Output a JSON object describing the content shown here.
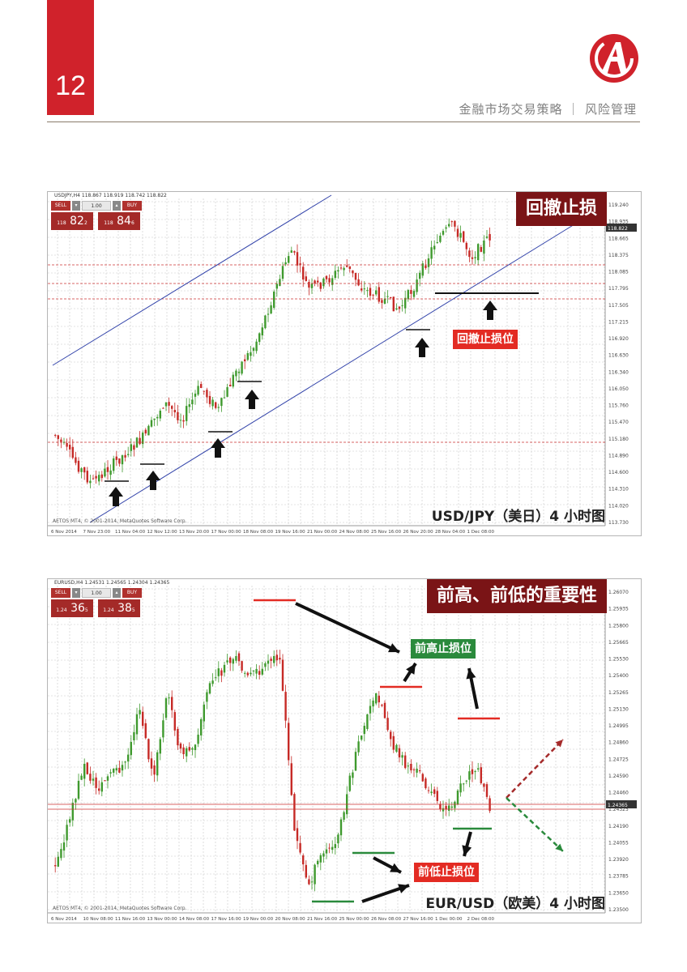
{
  "header": {
    "page_number": "12",
    "title": "金融市场交易策略 ｜ 风险管理",
    "brand_color": "#d0222b"
  },
  "chart1": {
    "symbol_line": "USDJPY,H4 118.867 118.919 118.742 118.822",
    "copyright": "AETOS MT4, © 2001-2014, MetaQuotes Software Corp.",
    "banner": "回撤止损",
    "caption": "USD/JPY（美日）4 小时图",
    "stop_label": "回撤止损位",
    "ticket": {
      "sell": "SELL",
      "buy": "BUY",
      "lot": "1.00",
      "sell_price_small": "118",
      "sell_price_big": "82",
      "sell_price_sup": "2",
      "buy_price_small": "118",
      "buy_price_big": "84",
      "buy_price_sup": "6"
    }
  },
  "chart2": {
    "symbol_line": "EURUSD,H4 1.24531 1.24565 1.24304 1.24365",
    "copyright": "AETOS MT4, © 2001-2014, MetaQuotes Software Corp.",
    "banner": "前高、前低的重要性",
    "caption": "EUR/USD（欧美）4 小时图",
    "high_label": "前高止损位",
    "low_label": "前低止损位",
    "ticket": {
      "sell": "SELL",
      "buy": "BUY",
      "lot": "1.00",
      "sell_price_small": "1.24",
      "sell_price_big": "36",
      "sell_price_sup": "5",
      "buy_price_small": "1.24",
      "buy_price_big": "38",
      "buy_price_sup": "5"
    }
  },
  "chart_data": [
    {
      "type": "candlestick",
      "title": "USD/JPY（美日）4 小时图",
      "y_ticks": [
        "119.240",
        "118.935",
        "118.665",
        "118.375",
        "118.085",
        "117.795",
        "117.505",
        "117.215",
        "116.920",
        "116.630",
        "116.340",
        "116.050",
        "115.760",
        "115.470",
        "115.180",
        "114.890",
        "114.600",
        "114.310",
        "114.020",
        "113.730"
      ],
      "current_price": "118.822",
      "x_ticks": [
        "6 Nov 2014",
        "7 Nov 23:00",
        "11 Nov 04:00",
        "12 Nov 12:00",
        "13 Nov 20:00",
        "17 Nov 00:00",
        "18 Nov 08:00",
        "19 Nov 16:00",
        "21 Nov 00:00",
        "24 Nov 08:00",
        "25 Nov 16:00",
        "26 Nov 20:00",
        "28 Nov 04:00",
        "1 Dec 08:00"
      ]
    },
    {
      "type": "candlestick",
      "title": "EUR/USD（欧美）4 小时图",
      "y_ticks": [
        "1.26070",
        "1.25935",
        "1.25800",
        "1.25665",
        "1.25530",
        "1.25400",
        "1.25265",
        "1.25130",
        "1.24995",
        "1.24860",
        "1.24725",
        "1.24590",
        "1.24460",
        "1.24325",
        "1.24190",
        "1.24055",
        "1.23920",
        "1.23785",
        "1.23650",
        "1.23500"
      ],
      "current_price": "1.24365",
      "x_ticks": [
        "6 Nov 2014",
        "10 Nov 08:00",
        "11 Nov 16:00",
        "13 Nov 00:00",
        "14 Nov 08:00",
        "17 Nov 16:00",
        "19 Nov 00:00",
        "20 Nov 08:00",
        "21 Nov 16:00",
        "25 Nov 00:00",
        "26 Nov 08:00",
        "27 Nov 16:00",
        "1 Dec 00:00",
        "2 Dec 08:00"
      ]
    }
  ]
}
